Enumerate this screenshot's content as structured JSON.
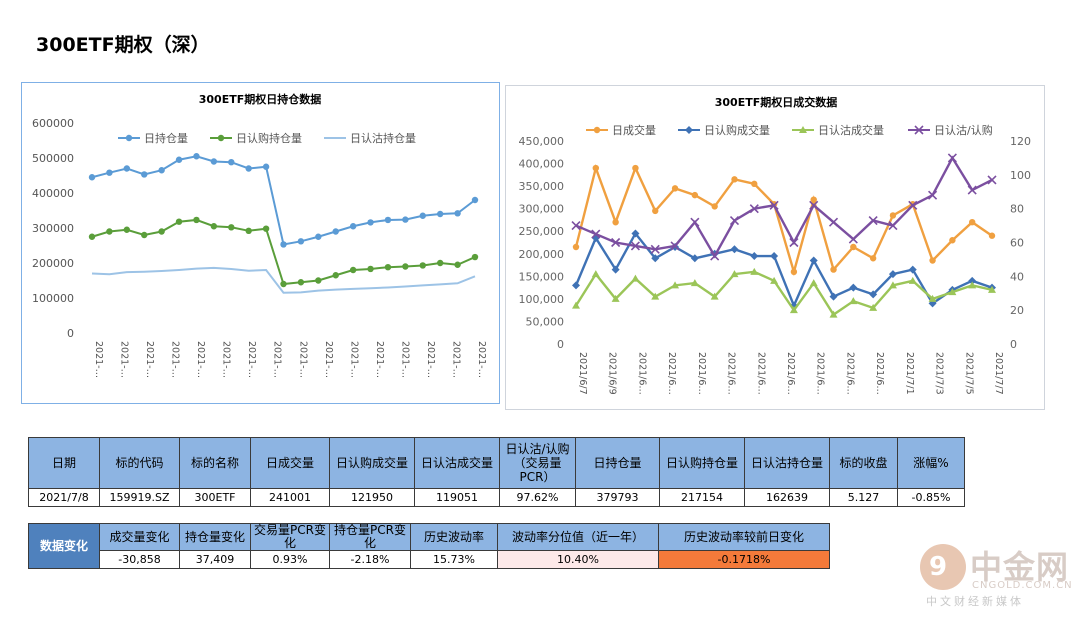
{
  "page": {
    "title": "300ETF期权（深）"
  },
  "chart_data": [
    {
      "type": "line",
      "title": "300ETF期权日持仓数据",
      "y_ticks": [
        "0",
        "100000",
        "200000",
        "300000",
        "400000",
        "500000",
        "600000"
      ],
      "ylim": [
        0,
        600000
      ],
      "x_tick_labels": [
        "2021-…",
        "2021-…",
        "2021-…",
        "2021-…",
        "2021-…",
        "2021-…",
        "2021-…",
        "2021-…",
        "2021-…",
        "2021-…",
        "2021-…",
        "2021-…",
        "2021-…",
        "2021-…",
        "2021-…",
        "2021-…"
      ],
      "grid": false,
      "legend_position": "top",
      "series": [
        {
          "name": "日持仓量",
          "color": "#5b9bd5",
          "marker": "circle",
          "values": [
            445000,
            458000,
            470000,
            453000,
            465000,
            495000,
            505000,
            490000,
            488000,
            470000,
            475000,
            253000,
            262000,
            275000,
            290000,
            305000,
            316000,
            323000,
            324000,
            335000,
            340000,
            342000,
            380000
          ]
        },
        {
          "name": "日认购持仓量",
          "color": "#5a9e3a",
          "marker": "circle",
          "values": [
            275000,
            290000,
            295000,
            280000,
            290000,
            318000,
            323000,
            305000,
            302000,
            292000,
            298000,
            140000,
            145000,
            150000,
            165000,
            180000,
            183000,
            188000,
            190000,
            193000,
            200000,
            195000,
            217000
          ]
        },
        {
          "name": "日认沽持仓量",
          "color": "#9dc3e6",
          "marker": "none",
          "values": [
            170000,
            168000,
            174000,
            175000,
            177000,
            180000,
            184000,
            186000,
            183000,
            178000,
            180000,
            115000,
            116000,
            121000,
            124000,
            126000,
            128000,
            130000,
            133000,
            136000,
            139000,
            142000,
            162000
          ]
        }
      ]
    },
    {
      "type": "line",
      "title": "300ETF期权日成交数据",
      "y_left_ticks": [
        "0",
        "50,000",
        "100,000",
        "150,000",
        "200,000",
        "250,000",
        "300,000",
        "350,000",
        "400,000",
        "450,000"
      ],
      "y_left_lim": [
        0,
        450000
      ],
      "y_right_ticks": [
        "0",
        "20",
        "40",
        "60",
        "80",
        "100",
        "120"
      ],
      "y_right_lim": [
        0,
        120
      ],
      "x_tick_labels": [
        "2021/6/7",
        "2021/6/9",
        "2021/6…",
        "2021/6…",
        "2021/6…",
        "2021/6…",
        "2021/6…",
        "2021/6…",
        "2021/6…",
        "2021/6…",
        "2021/6…",
        "2021/7/1",
        "2021/7/3",
        "2021/7/5",
        "2021/7/7"
      ],
      "grid": false,
      "legend_position": "top",
      "series": [
        {
          "name": "日成交量",
          "axis": "left",
          "color": "#f0a040",
          "marker": "circle",
          "values": [
            215000,
            390000,
            270000,
            390000,
            295000,
            345000,
            330000,
            305000,
            365000,
            355000,
            310000,
            160000,
            320000,
            165000,
            215000,
            190000,
            285000,
            310000,
            185000,
            230000,
            270000,
            240000
          ]
        },
        {
          "name": "日认购成交量",
          "axis": "left",
          "color": "#3f72b5",
          "marker": "diamond",
          "values": [
            130000,
            235000,
            165000,
            245000,
            190000,
            215000,
            190000,
            200000,
            210000,
            195000,
            195000,
            85000,
            185000,
            105000,
            125000,
            110000,
            155000,
            165000,
            90000,
            120000,
            140000,
            125000
          ]
        },
        {
          "name": "日认沽成交量",
          "axis": "left",
          "color": "#9bc558",
          "marker": "triangle",
          "values": [
            85000,
            155000,
            100000,
            145000,
            105000,
            130000,
            135000,
            105000,
            155000,
            160000,
            140000,
            75000,
            135000,
            65000,
            95000,
            80000,
            130000,
            140000,
            100000,
            115000,
            130000,
            120000
          ]
        },
        {
          "name": "日认沽/认购",
          "axis": "right",
          "color": "#7b4fa0",
          "marker": "x",
          "values": [
            70,
            65,
            60,
            58,
            56,
            58,
            72,
            52,
            73,
            80,
            82,
            60,
            82,
            72,
            62,
            73,
            70,
            82,
            88,
            110,
            91,
            97
          ]
        }
      ]
    }
  ],
  "main_table": {
    "headers": [
      "日期",
      "标的代码",
      "标的名称",
      "日成交量",
      "日认购成交量",
      "日认沽成交量",
      "日认沽/认购（交易量PCR）",
      "日持仓量",
      "日认购持仓量",
      "日认沽持仓量",
      "标的收盘",
      "涨幅%"
    ],
    "values": [
      "2021/7/8",
      "159919.SZ",
      "300ETF",
      "241001",
      "121950",
      "119051",
      "97.62%",
      "379793",
      "217154",
      "162639",
      "5.127",
      "-0.85%"
    ]
  },
  "change_table": {
    "side_label": "数据变化",
    "headers": [
      "成交量变化",
      "持仓量变化",
      "交易量PCR变化",
      "持仓量PCR变化",
      "历史波动率",
      "波动率分位值（近一年）",
      "历史波动率较前日变化"
    ],
    "values": [
      "-30,858",
      "37,409",
      "0.93%",
      "-2.18%",
      "15.73%",
      "10.40%",
      "-0.1718%"
    ]
  },
  "watermark": {
    "logo_glyph": "9",
    "name": "中金网",
    "url": "CNGOLD.COM.CN",
    "subtitle": "中文财经新媒体"
  },
  "colors": {
    "header_fill": "#8db4e2",
    "side_fill": "#4f81bd",
    "pink_fill": "#fde9e9",
    "orange_fill": "#f47a3a"
  }
}
